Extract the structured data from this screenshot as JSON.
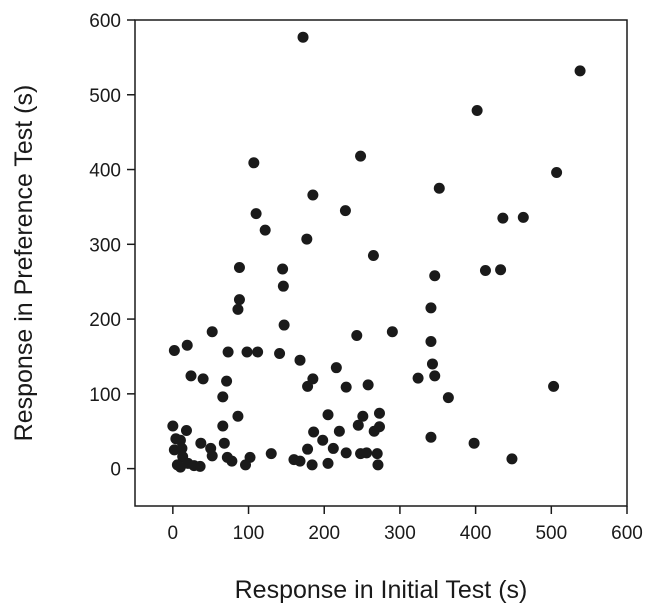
{
  "chart_data": {
    "type": "scatter",
    "xlabel": "Response in Initial Test (s)",
    "ylabel": "Response in Preference Test (s)",
    "xlim": [
      -50,
      600
    ],
    "ylim": [
      -50,
      600
    ],
    "xticks": [
      0,
      100,
      200,
      300,
      400,
      500,
      600
    ],
    "yticks": [
      0,
      100,
      200,
      300,
      400,
      500,
      600
    ],
    "grid": false,
    "marker_color": "#1a1a1a",
    "points": [
      [
        172,
        577
      ],
      [
        538,
        532
      ],
      [
        402,
        479
      ],
      [
        248,
        418
      ],
      [
        507,
        396
      ],
      [
        107,
        409
      ],
      [
        352,
        375
      ],
      [
        185,
        366
      ],
      [
        228,
        345
      ],
      [
        110,
        341
      ],
      [
        436,
        335
      ],
      [
        463,
        336
      ],
      [
        122,
        319
      ],
      [
        177,
        307
      ],
      [
        265,
        285
      ],
      [
        413,
        265
      ],
      [
        433,
        266
      ],
      [
        88,
        269
      ],
      [
        145,
        267
      ],
      [
        346,
        258
      ],
      [
        146,
        244
      ],
      [
        88,
        226
      ],
      [
        86,
        213
      ],
      [
        341,
        215
      ],
      [
        147,
        192
      ],
      [
        52,
        183
      ],
      [
        243,
        178
      ],
      [
        290,
        183
      ],
      [
        341,
        170
      ],
      [
        2,
        158
      ],
      [
        19,
        165
      ],
      [
        98,
        156
      ],
      [
        73,
        156
      ],
      [
        112,
        156
      ],
      [
        141,
        154
      ],
      [
        168,
        145
      ],
      [
        216,
        135
      ],
      [
        343,
        140
      ],
      [
        24,
        124
      ],
      [
        40,
        120
      ],
      [
        71,
        117
      ],
      [
        185,
        120
      ],
      [
        178,
        110
      ],
      [
        229,
        109
      ],
      [
        258,
        112
      ],
      [
        324,
        121
      ],
      [
        346,
        124
      ],
      [
        364,
        95
      ],
      [
        66,
        96
      ],
      [
        503,
        110
      ],
      [
        86,
        70
      ],
      [
        205,
        72
      ],
      [
        251,
        70
      ],
      [
        273,
        74
      ],
      [
        0,
        57
      ],
      [
        66,
        57
      ],
      [
        18,
        51
      ],
      [
        186,
        49
      ],
      [
        220,
        50
      ],
      [
        266,
        50
      ],
      [
        273,
        56
      ],
      [
        245,
        58
      ],
      [
        4,
        40
      ],
      [
        10,
        38
      ],
      [
        37,
        34
      ],
      [
        68,
        34
      ],
      [
        198,
        38
      ],
      [
        341,
        42
      ],
      [
        398,
        34
      ],
      [
        2,
        25
      ],
      [
        12,
        27
      ],
      [
        13,
        16
      ],
      [
        50,
        27
      ],
      [
        52,
        17
      ],
      [
        102,
        15
      ],
      [
        130,
        20
      ],
      [
        178,
        26
      ],
      [
        212,
        27
      ],
      [
        229,
        21
      ],
      [
        248,
        20
      ],
      [
        256,
        21
      ],
      [
        270,
        20
      ],
      [
        6,
        5
      ],
      [
        10,
        2
      ],
      [
        20,
        7
      ],
      [
        28,
        4
      ],
      [
        36,
        3
      ],
      [
        72,
        15
      ],
      [
        78,
        10
      ],
      [
        96,
        5
      ],
      [
        160,
        12
      ],
      [
        168,
        10
      ],
      [
        184,
        5
      ],
      [
        205,
        7
      ],
      [
        271,
        5
      ],
      [
        448,
        13
      ]
    ]
  }
}
